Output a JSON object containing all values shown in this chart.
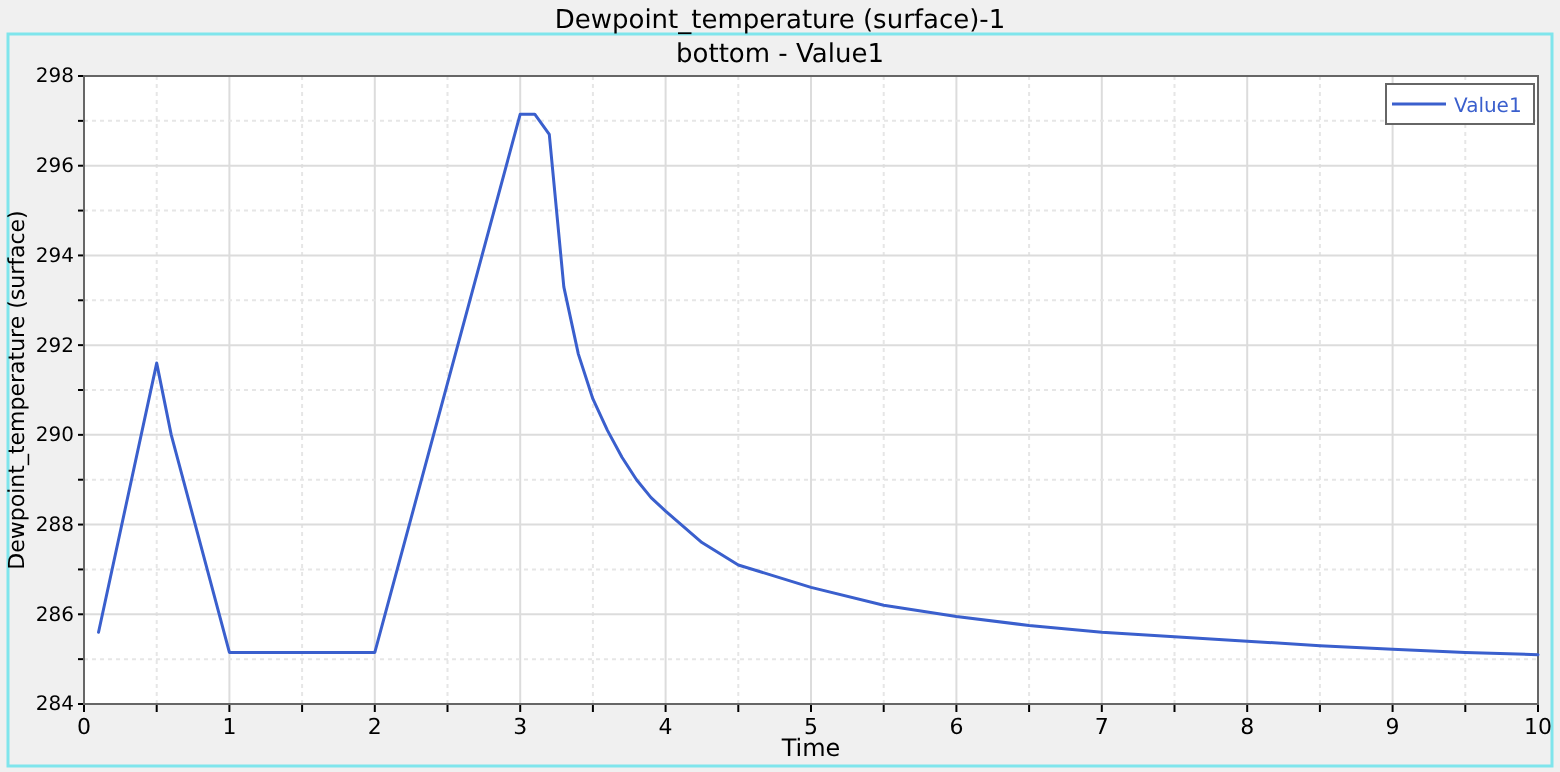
{
  "chart_data": {
    "type": "line",
    "title": "Dewpoint_temperature (surface)-1",
    "subtitle": "bottom - Value1",
    "xlabel": "Time",
    "ylabel": "Dewpoint_temperature (surface)",
    "x": [
      0.1,
      0.5,
      0.6,
      1,
      2,
      3,
      3.1,
      3.2,
      3.3,
      3.4,
      3.5,
      3.6,
      3.7,
      3.8,
      3.9,
      4,
      4.25,
      4.5,
      5,
      5.5,
      6,
      6.5,
      7,
      7.5,
      8,
      8.5,
      9,
      9.5,
      10
    ],
    "series": [
      {
        "name": "Value1",
        "color": "#3a5fcd",
        "values": [
          285.6,
          291.6,
          290,
          285.15,
          285.15,
          297.15,
          297.15,
          296.7,
          293.3,
          291.8,
          290.8,
          290.1,
          289.5,
          289.0,
          288.6,
          288.3,
          287.6,
          287.1,
          286.6,
          286.2,
          285.95,
          285.75,
          285.6,
          285.5,
          285.4,
          285.3,
          285.22,
          285.15,
          285.1
        ]
      }
    ],
    "xlim": [
      0,
      10
    ],
    "xticks": [
      0,
      {
        "value": 0.5,
        "label": null
      },
      1,
      {
        "value": 1.5,
        "label": null
      },
      2,
      {
        "value": 2.5,
        "label": null
      },
      3,
      {
        "value": 3.5,
        "label": null
      },
      4,
      {
        "value": 4.5,
        "label": null
      },
      5,
      {
        "value": 5.5,
        "label": null
      },
      6,
      {
        "value": 6.5,
        "label": null
      },
      7,
      {
        "value": 7.5,
        "label": null
      },
      8,
      {
        "value": 8.5,
        "label": null
      },
      9,
      {
        "value": 9.5,
        "label": null
      },
      10
    ],
    "ylim": [
      284,
      298
    ],
    "yticks": [
      284,
      {
        "value": 285,
        "label": null
      },
      286,
      {
        "value": 287,
        "label": null
      },
      288,
      {
        "value": 289,
        "label": null
      },
      290,
      {
        "value": 291,
        "label": null
      },
      292,
      {
        "value": 293,
        "label": null
      },
      294,
      {
        "value": 295,
        "label": null
      },
      296,
      {
        "value": 297,
        "label": null
      },
      298
    ],
    "grid": true,
    "legend": "top right",
    "marker": "none",
    "line_style": "solid"
  }
}
